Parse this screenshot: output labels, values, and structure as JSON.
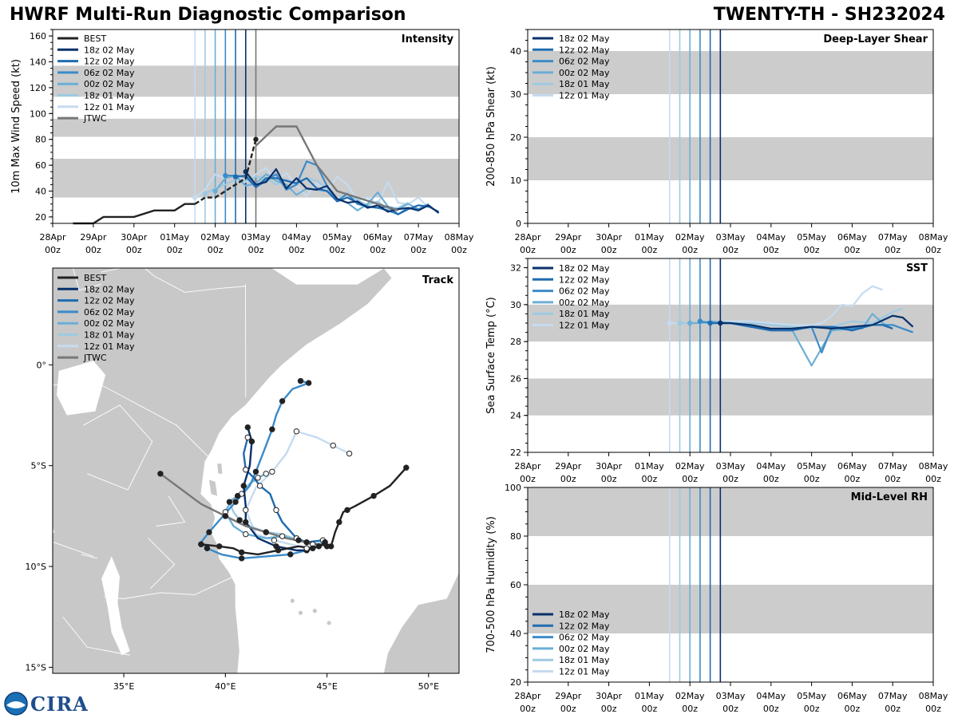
{
  "header": {
    "title_left": "HWRF Multi-Run Diagnostic Comparison",
    "title_right": "TWENTY-TH - SH232024"
  },
  "logo": {
    "text": "CIRA"
  },
  "time_axis": {
    "ticks": [
      "28Apr\n00z",
      "29Apr\n00z",
      "30Apr\n00z",
      "01May\n00z",
      "02May\n00z",
      "03May\n00z",
      "04May\n00z",
      "05May\n00z",
      "06May\n00z",
      "07May\n00z",
      "08May\n00z"
    ],
    "range_days": [
      0,
      10
    ]
  },
  "runs": [
    {
      "label": "18z 02 May",
      "color": "#08306b",
      "init_day": 4.75
    },
    {
      "label": "12z 02 May",
      "color": "#1f6bb0",
      "init_day": 4.5
    },
    {
      "label": "06z 02 May",
      "color": "#3c8bc8",
      "init_day": 4.25
    },
    {
      "label": "00z 02 May",
      "color": "#6baed6",
      "init_day": 4.0
    },
    {
      "label": "18z 01 May",
      "color": "#9ecae1",
      "init_day": 3.75
    },
    {
      "label": "12z 01 May",
      "color": "#c6dbef",
      "init_day": 3.5
    }
  ],
  "best_label": "BEST",
  "jtwc_label": "JTWC",
  "colors": {
    "best": "#222222",
    "jtwc": "#777777",
    "band": "#cccccc",
    "land": "#c8c8c8"
  },
  "chart_data": [
    {
      "type": "line",
      "id": "intensity",
      "title": "Intensity",
      "ylabel": "10m Max Wind Speed (kt)",
      "ylim": [
        15,
        165
      ],
      "yticks": [
        20,
        40,
        60,
        80,
        100,
        120,
        140,
        160
      ],
      "bands": [
        [
          35,
          65
        ],
        [
          82,
          96
        ],
        [
          113,
          137
        ]
      ],
      "best": {
        "x": [
          0.5,
          1.0,
          1.25,
          1.75,
          2.0,
          2.5,
          2.75,
          3.0,
          3.25,
          3.5,
          3.75,
          4.0,
          4.25,
          4.5,
          4.75,
          5.0
        ],
        "y": [
          15,
          15,
          20,
          20,
          20,
          25,
          25,
          25,
          30,
          30,
          35,
          35,
          40,
          45,
          50,
          80
        ]
      },
      "jtwc": {
        "x": [
          5.0,
          5.5,
          6.0,
          6.5,
          7.0,
          7.5,
          8.0,
          8.5
        ],
        "y": [
          75,
          90,
          90,
          60,
          40,
          35,
          30,
          25
        ]
      },
      "series": [
        {
          "name": "18z 02 May",
          "x": [
            4.75,
            5.0,
            5.25,
            5.5,
            5.75,
            6.0,
            6.25,
            6.5,
            6.75,
            7.0,
            7.25,
            7.5,
            7.75,
            8.0,
            8.25,
            8.5,
            8.75,
            9.0,
            9.25,
            9.5
          ],
          "y": [
            55,
            45,
            47,
            57,
            42,
            50,
            42,
            41,
            44,
            34,
            31,
            32,
            27,
            29,
            24,
            26,
            27,
            25,
            29,
            23
          ]
        },
        {
          "name": "12z 02 May",
          "x": [
            4.5,
            4.75,
            5.0,
            5.25,
            5.5,
            5.75,
            6.0,
            6.25,
            6.5,
            6.75,
            7.0,
            7.25,
            7.5,
            7.75,
            8.0,
            8.25,
            8.5,
            8.75,
            9.0,
            9.25,
            9.5
          ],
          "y": [
            51,
            52,
            43,
            50,
            50,
            48,
            46,
            50,
            42,
            40,
            32,
            35,
            31,
            28,
            27,
            28,
            22,
            26,
            29,
            28,
            24
          ]
        },
        {
          "name": "06z 02 May",
          "x": [
            4.25,
            4.5,
            4.75,
            5.0,
            5.25,
            5.5,
            5.75,
            6.0,
            6.25,
            6.5,
            6.75,
            7.0,
            7.25,
            7.5,
            7.75,
            8.0,
            8.25,
            8.5,
            8.75,
            9.0,
            9.25
          ],
          "y": [
            52,
            52,
            51,
            43,
            48,
            53,
            41,
            45,
            63,
            60,
            44,
            32,
            38,
            30,
            28,
            27,
            25,
            22,
            27,
            26,
            30
          ]
        },
        {
          "name": "00z 02 May",
          "x": [
            4.0,
            4.25,
            4.5,
            4.75,
            5.0,
            5.25,
            5.5,
            5.75,
            6.0,
            6.25,
            6.5,
            6.75,
            7.0,
            7.25,
            7.5,
            7.75,
            8.0,
            8.25,
            8.5,
            8.75,
            9.0
          ],
          "y": [
            40,
            50,
            52,
            44,
            46,
            53,
            48,
            45,
            37,
            42,
            41,
            40,
            34,
            31,
            25,
            30,
            39,
            28,
            26,
            30,
            26
          ]
        },
        {
          "name": "18z 01 May",
          "x": [
            3.75,
            4.0,
            4.25,
            4.5,
            4.75,
            5.0,
            5.25,
            5.5,
            5.75,
            6.0,
            6.25,
            6.5,
            6.75,
            7.0,
            7.25,
            7.5,
            7.75,
            8.0,
            8.25,
            8.5,
            8.75
          ],
          "y": [
            38,
            42,
            45,
            49,
            48,
            51,
            50,
            45,
            49,
            45,
            50,
            48,
            42,
            33,
            38,
            33,
            29,
            32,
            26,
            27,
            31
          ]
        },
        {
          "name": "12z 01 May",
          "x": [
            3.5,
            3.75,
            4.0,
            4.25,
            4.5,
            4.75,
            5.0,
            5.25,
            5.5,
            5.75,
            6.0,
            6.25,
            6.5,
            6.75,
            7.0,
            7.25,
            7.5,
            7.75,
            8.0,
            8.25,
            8.5,
            8.75,
            9.0,
            9.25
          ],
          "y": [
            35,
            41,
            53,
            50,
            52,
            47,
            53,
            58,
            48,
            54,
            44,
            36,
            46,
            40,
            51,
            45,
            33,
            35,
            30,
            47,
            31,
            30,
            35,
            27
          ]
        }
      ]
    },
    {
      "type": "line",
      "id": "shear",
      "title": "Deep-Layer Shear",
      "ylabel": "200-850 hPa Shear (kt)",
      "ylim": [
        0,
        45
      ],
      "yticks": [
        0,
        10,
        20,
        30,
        40
      ],
      "bands": [
        [
          10,
          20
        ],
        [
          30,
          40
        ]
      ],
      "series": []
    },
    {
      "type": "line",
      "id": "sst",
      "title": "SST",
      "ylabel": "Sea Surface Temp (°C)",
      "ylim": [
        22,
        32.5
      ],
      "yticks": [
        22,
        24,
        26,
        28,
        30,
        32
      ],
      "bands": [
        [
          24,
          26
        ],
        [
          28,
          30
        ]
      ],
      "series": [
        {
          "name": "18z 02 May",
          "x": [
            4.75,
            5.0,
            5.5,
            6.0,
            6.5,
            7.0,
            7.5,
            8.0,
            8.5,
            9.0,
            9.25,
            9.5
          ],
          "y": [
            29.0,
            29.0,
            28.9,
            28.7,
            28.7,
            28.8,
            28.7,
            28.8,
            28.9,
            29.4,
            29.3,
            28.8
          ]
        },
        {
          "name": "12z 02 May",
          "x": [
            4.5,
            4.75,
            5.0,
            5.5,
            6.0,
            6.5,
            7.0,
            7.5,
            8.0,
            8.5,
            8.75,
            9.0
          ],
          "y": [
            29.0,
            29.0,
            29.0,
            28.8,
            28.6,
            28.6,
            28.8,
            28.8,
            28.6,
            28.9,
            28.9,
            28.7
          ]
        },
        {
          "name": "06z 02 May",
          "x": [
            4.25,
            4.5,
            5.0,
            5.5,
            6.0,
            6.5,
            7.0,
            7.25,
            7.5,
            8.0,
            8.5,
            9.0,
            9.5
          ],
          "y": [
            29.1,
            29.0,
            29.0,
            28.8,
            28.7,
            28.7,
            28.8,
            27.4,
            28.8,
            28.7,
            28.9,
            28.9,
            28.5
          ]
        },
        {
          "name": "00z 02 May",
          "x": [
            4.0,
            4.25,
            4.5,
            5.0,
            5.5,
            6.0,
            6.5,
            7.0,
            7.5,
            8.0,
            8.25,
            8.5,
            8.75,
            9.0
          ],
          "y": [
            29.0,
            29.0,
            29.1,
            29.0,
            28.8,
            28.7,
            28.7,
            26.7,
            28.6,
            28.7,
            28.7,
            29.5,
            29.0,
            28.7
          ]
        },
        {
          "name": "18z 01 May",
          "x": [
            3.75,
            4.0,
            4.5,
            5.0,
            5.5,
            6.0,
            6.5,
            7.0,
            7.5,
            8.0,
            8.5,
            9.0,
            9.25
          ],
          "y": [
            29.0,
            29.0,
            29.0,
            29.0,
            29.0,
            28.9,
            28.8,
            28.7,
            28.8,
            29.1,
            29.0,
            29.6,
            29.8
          ]
        },
        {
          "name": "12z 01 May",
          "x": [
            3.5,
            4.0,
            4.5,
            5.0,
            5.5,
            6.0,
            6.5,
            7.0,
            7.25,
            7.5,
            7.75,
            8.0,
            8.25,
            8.5,
            8.75
          ],
          "y": [
            29.0,
            29.0,
            29.0,
            29.1,
            29.1,
            29.0,
            28.9,
            28.9,
            29.0,
            29.4,
            30.0,
            29.9,
            30.6,
            31.0,
            30.8
          ]
        }
      ]
    },
    {
      "type": "line",
      "id": "rh",
      "title": "Mid-Level RH",
      "ylabel": "700-500 hPa Humidity (%)",
      "ylim": [
        20,
        100
      ],
      "yticks": [
        20,
        40,
        60,
        80,
        100
      ],
      "bands": [
        [
          40,
          60
        ],
        [
          80,
          100
        ]
      ],
      "series": []
    },
    {
      "type": "scatter",
      "id": "track",
      "title": "Track",
      "xlim": [
        31.5,
        51.5
      ],
      "ylim": [
        -15.3,
        4.8
      ],
      "xticks": [
        35,
        40,
        45,
        50
      ],
      "xticklabels": [
        "35°E",
        "40°E",
        "45°E",
        "50°E"
      ],
      "yticks": [
        0,
        -5,
        -10,
        -15
      ],
      "yticklabels": [
        "0°",
        "5°S",
        "10°S",
        "15°S"
      ],
      "best": {
        "lon": [
          48.9,
          48.1,
          47.3,
          46.4,
          46.0,
          45.8,
          45.6,
          45.4,
          45.2,
          44.8,
          44.3,
          43.6,
          42.6,
          41.6,
          40.8,
          40.4,
          39.7,
          38.8
        ],
        "lat": [
          -5.1,
          -6.0,
          -6.5,
          -7.0,
          -7.2,
          -7.3,
          -7.8,
          -8.3,
          -9.0,
          -8.9,
          -9.1,
          -9.0,
          -9.2,
          -9.4,
          -9.3,
          -9.1,
          -9.0,
          -8.9
        ]
      },
      "jtwc": {
        "lon": [
          36.8,
          38.8,
          40.0,
          41.0,
          42.0,
          43.0,
          44.0,
          45.0
        ],
        "lat": [
          -5.4,
          -6.9,
          -7.5,
          -8.0,
          -8.3,
          -8.6,
          -8.8,
          -9.0
        ]
      },
      "series": [
        {
          "name": "18z 02 May",
          "lon": [
            44.9,
            44.6,
            44.0,
            43.5,
            42.5,
            41.6,
            41.0,
            41.0,
            40.9,
            41.2,
            41.3,
            41.1
          ],
          "lat": [
            -8.8,
            -9.0,
            -9.2,
            -9.2,
            -9.0,
            -8.6,
            -7.8,
            -7.0,
            -6.0,
            -5.0,
            -3.8,
            -3.1
          ]
        },
        {
          "name": "12z 02 May",
          "lon": [
            44.8,
            44.0,
            43.5,
            42.8,
            42.5,
            42.2,
            41.7,
            41.4,
            41.0,
            40.9,
            41.1
          ],
          "lat": [
            -8.7,
            -8.8,
            -8.6,
            -7.8,
            -7.2,
            -6.4,
            -6.0,
            -5.6,
            -5.2,
            -4.4,
            -3.6
          ]
        },
        {
          "name": "06z 02 May",
          "lon": [
            44.6,
            44.0,
            43.2,
            42.0,
            40.8,
            39.8,
            39.1,
            38.8,
            39.2,
            39.8,
            40.5,
            41.2,
            41.5,
            42.0,
            42.3,
            42.5,
            42.8,
            43.3,
            44.1,
            43.7
          ],
          "lat": [
            -9.0,
            -9.2,
            -9.4,
            -9.5,
            -9.6,
            -9.4,
            -9.1,
            -8.8,
            -8.3,
            -7.6,
            -6.8,
            -6.0,
            -5.3,
            -4.0,
            -3.2,
            -2.5,
            -1.8,
            -1.2,
            -0.9,
            -0.8
          ]
        },
        {
          "name": "00z 02 May",
          "lon": [
            44.3,
            43.6,
            42.8,
            42.0,
            41.0,
            40.4,
            40.0,
            40.3,
            40.8,
            41.2,
            41.6,
            42.0
          ],
          "lat": [
            -8.9,
            -8.7,
            -8.5,
            -8.6,
            -8.4,
            -8.0,
            -7.3,
            -6.7,
            -6.4,
            -5.9,
            -5.6,
            -5.4
          ]
        },
        {
          "name": "18z 01 May",
          "lon": [
            44.9,
            44.2,
            43.6,
            42.8,
            42.0,
            41.2,
            40.7,
            40.4,
            40.2,
            40.6
          ],
          "lat": [
            -8.8,
            -8.9,
            -8.7,
            -8.4,
            -8.3,
            -8.0,
            -7.7,
            -7.3,
            -6.8,
            -6.5
          ]
        },
        {
          "name": "12z 01 May",
          "lon": [
            44.0,
            43.2,
            42.4,
            41.5,
            41.0,
            41.5,
            42.3,
            43.0,
            43.5,
            44.5,
            45.3,
            46.1
          ],
          "lat": [
            -9.1,
            -8.9,
            -8.7,
            -8.4,
            -7.2,
            -6.1,
            -5.3,
            -4.4,
            -3.3,
            -3.6,
            -4.0,
            -4.4
          ]
        }
      ]
    }
  ]
}
